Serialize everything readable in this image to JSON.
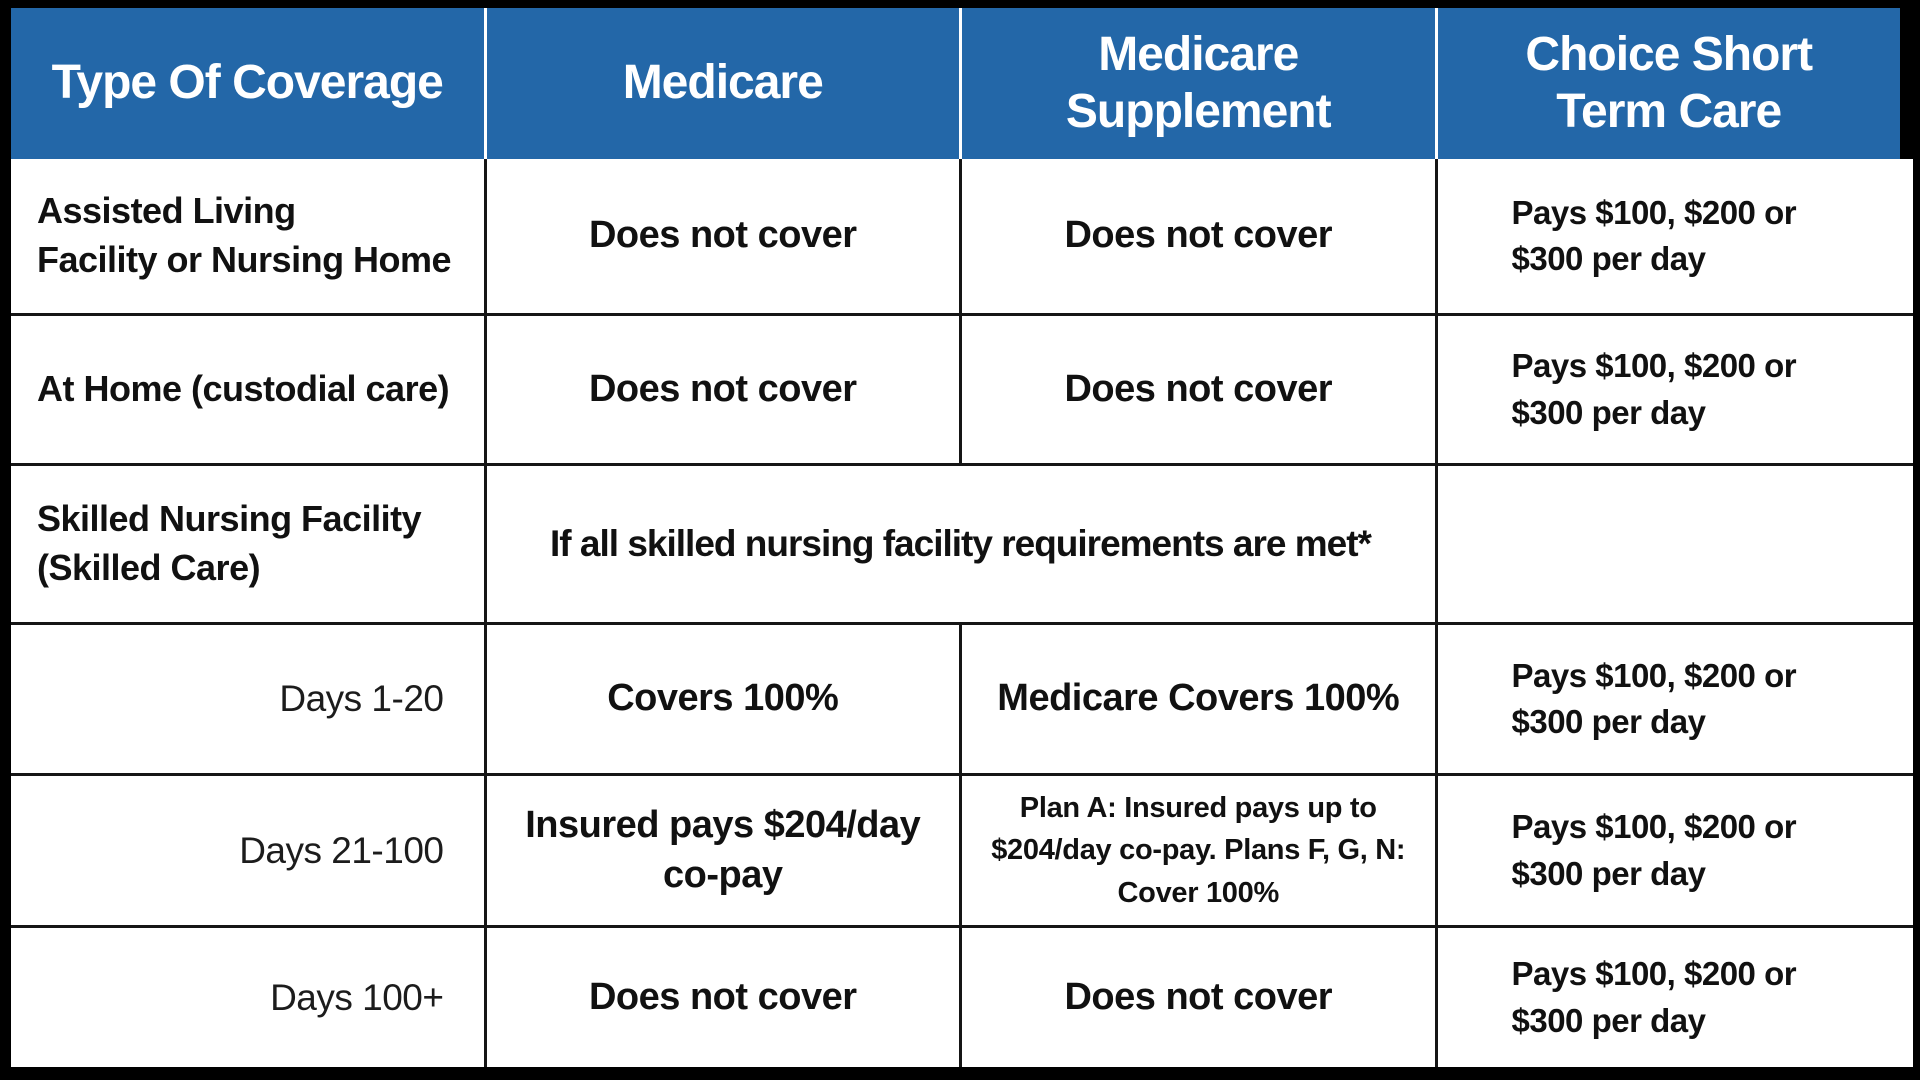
{
  "theme": {
    "header_bg": "#2367A8",
    "header_text": "#FFFFFF",
    "body_text": "#111111",
    "grid_line": "#151515",
    "outer_border": "#000000"
  },
  "chart_data": {
    "type": "table",
    "title": "Medicare vs Medicare Supplement vs Choice Short Term Care coverage comparison",
    "columns": [
      "Type Of Coverage",
      "Medicare",
      "Medicare\nSupplement",
      "Choice Short\nTerm Care"
    ],
    "rows": [
      {
        "coverage": "Assisted Living\nFacility or Nursing Home",
        "medicare": "Does not cover",
        "medicare_supplement": "Does not cover",
        "choice_short_term_care": "Pays $100, $200 or\n$300 per day"
      },
      {
        "coverage": "At Home (custodial care)",
        "medicare": "Does not cover",
        "medicare_supplement": "Does not cover",
        "choice_short_term_care": "Pays $100, $200 or\n$300 per day"
      },
      {
        "coverage": "Skilled Nursing Facility\n(Skilled Care)",
        "medicare_and_supplement_merged": "If all skilled nursing facility requirements are met*",
        "choice_short_term_care": ""
      },
      {
        "coverage": "Days 1-20",
        "medicare": "Covers 100%",
        "medicare_supplement": "Medicare Covers 100%",
        "choice_short_term_care": "Pays $100, $200 or\n$300 per day"
      },
      {
        "coverage": "Days 21-100",
        "medicare": "Insured pays $204/day\nco-pay",
        "medicare_supplement": "Plan A: Insured pays up to\n$204/day co-pay. Plans F, G, N:\nCover 100%",
        "choice_short_term_care": "Pays $100, $200 or\n$300 per day"
      },
      {
        "coverage": "Days 100+",
        "medicare": "Does not cover",
        "medicare_supplement": "Does not cover",
        "choice_short_term_care": "Pays $100, $200 or\n$300 per day"
      }
    ]
  }
}
